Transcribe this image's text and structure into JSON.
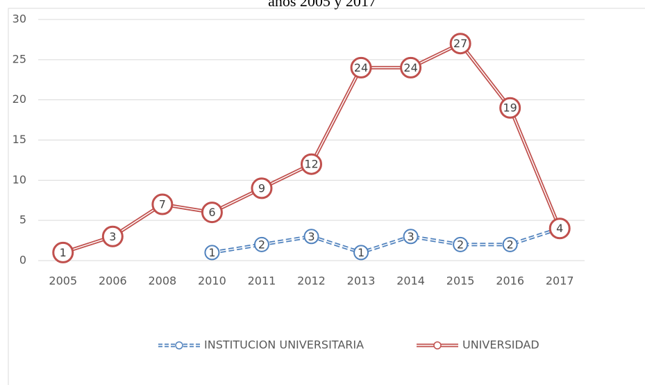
{
  "chart_data": {
    "type": "line",
    "title": "años 2005 y 2017",
    "categories": [
      "2005",
      "2006",
      "2008",
      "2010",
      "2011",
      "2012",
      "2013",
      "2014",
      "2015",
      "2016",
      "2017"
    ],
    "series": [
      {
        "name": "INSTITUCION UNIVERSITARIA",
        "color": "#4f81bd",
        "style": "dashed",
        "values": [
          null,
          null,
          null,
          1,
          2,
          3,
          1,
          3,
          2,
          2,
          4
        ]
      },
      {
        "name": "UNIVERSIDAD",
        "color": "#c0504d",
        "style": "solid",
        "values": [
          1,
          3,
          7,
          6,
          9,
          12,
          24,
          24,
          27,
          19,
          4
        ]
      }
    ],
    "ylim": [
      0,
      30
    ],
    "yticks": [
      0,
      5,
      10,
      15,
      20,
      25,
      30
    ],
    "grid": true,
    "legend": "bottom"
  }
}
